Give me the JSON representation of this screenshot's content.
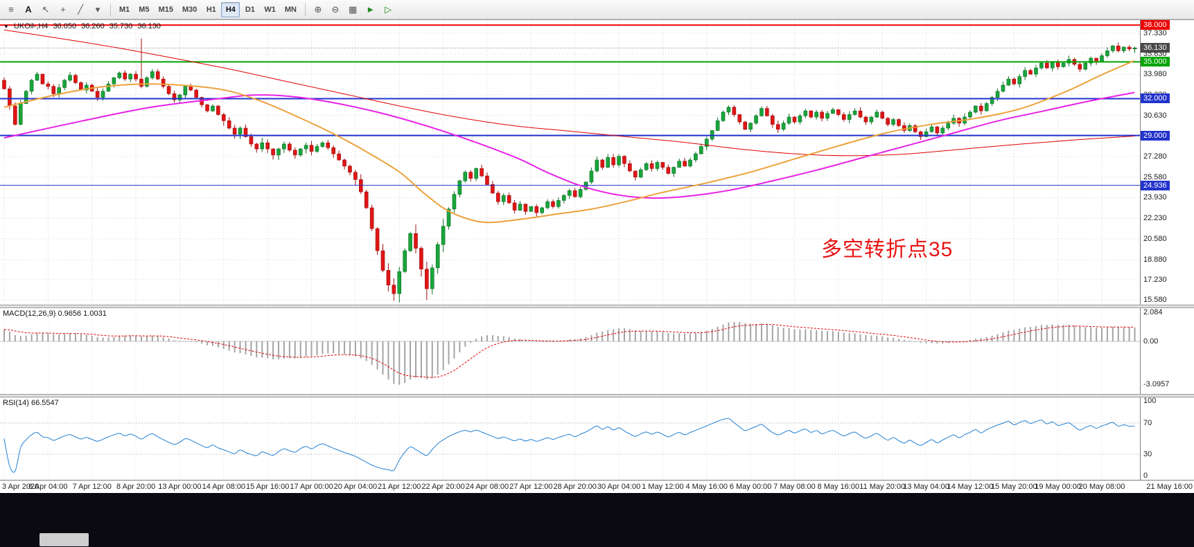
{
  "toolbar": {
    "tools": [
      {
        "name": "charts-menu-icon",
        "glyph": "≡"
      },
      {
        "name": "text-tool",
        "glyph": "A"
      },
      {
        "name": "cursor-tool-icon",
        "glyph": "↖"
      },
      {
        "name": "crosshair-tool-icon",
        "glyph": "+"
      },
      {
        "name": "draw-tool-icon",
        "glyph": "╱"
      },
      {
        "name": "draw-dropdown-icon",
        "glyph": "▾"
      }
    ],
    "timeframes": [
      "M1",
      "M5",
      "M15",
      "M30",
      "H1",
      "H4",
      "D1",
      "W1",
      "MN"
    ],
    "active_timeframe": "H4",
    "right_tools": [
      {
        "name": "zoom-in-icon",
        "glyph": "⊕",
        "color": "#555555"
      },
      {
        "name": "zoom-out-icon",
        "glyph": "⊖",
        "color": "#555555"
      },
      {
        "name": "tile-windows-icon",
        "glyph": "▦",
        "color": "#555555"
      },
      {
        "name": "auto-scroll-icon",
        "glyph": "►",
        "color": "#228b22"
      },
      {
        "name": "chart-shift-icon",
        "glyph": "▷",
        "color": "#228b22"
      }
    ]
  },
  "header": {
    "marker": "▼",
    "symbol": "UKOil-,H4",
    "open": "36.050",
    "high": "36.260",
    "low": "35.730",
    "close": "36.130"
  },
  "price_axis": {
    "ticks": [
      "37.330",
      "35.630",
      "33.980",
      "32.330",
      "30.630",
      "28.930",
      "27.280",
      "25.580",
      "23.930",
      "22.230",
      "20.580",
      "18.880",
      "17.230",
      "15.580"
    ]
  },
  "annotation": {
    "text": "多空转折点35",
    "color": "#e81313"
  },
  "macd_panel": {
    "label": "MACD(12,26,9)",
    "values": "0.9656 1.0031",
    "axis_ticks": [
      "2.084",
      "0.00",
      "-3.0957"
    ]
  },
  "rsi_panel": {
    "label": "RSI(14)",
    "value": "66.5547",
    "axis_ticks": [
      "100",
      "70",
      "30",
      "0"
    ]
  },
  "chart_data": {
    "type": "candlestick",
    "symbol": "UKOil-",
    "timeframe": "H4",
    "ohlc_current": {
      "open": 36.05,
      "high": 36.26,
      "low": 35.73,
      "close": 36.13
    },
    "y_range": [
      15.2,
      38.35
    ],
    "candles_per_label": 8,
    "x_labels": [
      "3 Apr 2020",
      "6 Apr 04:00",
      "7 Apr 12:00",
      "8 Apr 20:00",
      "13 Apr 00:00",
      "14 Apr 08:00",
      "15 Apr 16:00",
      "17 Apr 00:00",
      "20 Apr 04:00",
      "21 Apr 12:00",
      "22 Apr 20:00",
      "24 Apr 08:00",
      "27 Apr 12:00",
      "28 Apr 20:00",
      "30 Apr 04:00",
      "1 May 12:00",
      "4 May 16:00",
      "6 May 00:00",
      "7 May 08:00",
      "8 May 16:00",
      "11 May 20:00",
      "13 May 04:00",
      "14 May 12:00",
      "15 May 20:00",
      "19 May 00:00",
      "20 May 08:00",
      "21 May 16:00"
    ],
    "first_open": 33.5,
    "closes": [
      32.8,
      31.4,
      29.9,
      31.6,
      32.6,
      33.5,
      34.0,
      33.2,
      33.0,
      32.4,
      32.9,
      33.5,
      33.9,
      33.3,
      32.7,
      33.1,
      32.6,
      32.1,
      32.6,
      33.2,
      33.7,
      34.1,
      33.6,
      34.0,
      33.6,
      33.0,
      33.7,
      34.2,
      33.6,
      33.0,
      32.4,
      31.9,
      32.3,
      33.0,
      32.7,
      32.1,
      31.5,
      31.0,
      31.4,
      30.7,
      30.2,
      29.6,
      29.1,
      29.6,
      28.9,
      28.3,
      27.9,
      28.4,
      27.9,
      27.4,
      27.9,
      28.3,
      27.8,
      27.4,
      27.9,
      28.2,
      27.7,
      28.1,
      28.4,
      28.0,
      27.5,
      27.0,
      26.5,
      26.0,
      25.4,
      24.4,
      23.1,
      21.4,
      19.6,
      18.0,
      16.8,
      16.1,
      17.9,
      19.6,
      21.0,
      19.8,
      18.1,
      16.5,
      18.2,
      20.1,
      21.6,
      23.0,
      24.2,
      25.3,
      26.0,
      25.5,
      26.3,
      25.7,
      25.0,
      24.3,
      23.6,
      24.1,
      23.5,
      22.9,
      23.4,
      22.8,
      23.2,
      22.7,
      23.1,
      23.6,
      23.2,
      23.7,
      24.1,
      24.5,
      24.0,
      24.6,
      25.2,
      26.1,
      27.0,
      26.4,
      27.2,
      26.6,
      27.3,
      26.7,
      26.1,
      25.6,
      26.2,
      26.7,
      26.3,
      26.8,
      26.4,
      25.9,
      26.4,
      26.9,
      26.5,
      27.0,
      27.5,
      28.1,
      28.7,
      29.4,
      30.2,
      30.9,
      31.3,
      30.7,
      30.1,
      29.5,
      30.0,
      30.6,
      31.2,
      30.6,
      29.9,
      29.5,
      30.0,
      30.5,
      30.1,
      30.6,
      31.0,
      30.5,
      30.9,
      30.4,
      30.8,
      31.1,
      30.7,
      30.3,
      30.7,
      31.0,
      30.5,
      30.1,
      30.5,
      30.9,
      30.4,
      29.9,
      30.3,
      29.8,
      29.4,
      29.8,
      29.3,
      28.9,
      29.3,
      29.7,
      29.2,
      29.6,
      30.0,
      30.4,
      30.0,
      30.5,
      30.9,
      31.4,
      31.0,
      31.6,
      32.1,
      32.6,
      33.1,
      33.6,
      33.2,
      33.8,
      34.3,
      34.0,
      34.5,
      34.9,
      34.5,
      35.0,
      34.6,
      34.9,
      35.2,
      34.8,
      34.4,
      34.9,
      35.3,
      35.0,
      35.5,
      35.9,
      36.3,
      35.9,
      36.2,
      36.05,
      36.13
    ],
    "wick_overrides": {
      "25": {
        "high": 36.9
      },
      "77": {
        "low": 15.58
      },
      "206": {
        "high": 36.26,
        "low": 35.73
      }
    },
    "levels": [
      {
        "price": 38.0,
        "label": "38.000",
        "color": "#f00000",
        "width": 2
      },
      {
        "price": 35.0,
        "label": "35.000",
        "color": "#00a400",
        "width": 2
      },
      {
        "price": 32.0,
        "label": "32.000",
        "color": "#2233cc",
        "width": 2
      },
      {
        "price": 29.0,
        "label": "29.000",
        "color": "#2233cc",
        "width": 2
      },
      {
        "price": 24.936,
        "label": "24.936",
        "color": "#2233cc",
        "width": 1
      }
    ],
    "current_price": {
      "price": 36.13,
      "label": "36.130",
      "badge_color": "#484848"
    },
    "candle_colors": {
      "up": "#19a53b",
      "up_edge": "#0c6e24",
      "down": "#e01515",
      "down_edge": "#9c0d0d"
    },
    "moving_averages": [
      {
        "name": "ma-slow-red",
        "color": "#e00000",
        "width": 1,
        "points": [
          [
            0,
            37.6
          ],
          [
            0.05,
            36.9
          ],
          [
            0.1,
            36.15
          ],
          [
            0.15,
            35.3
          ],
          [
            0.2,
            34.4
          ],
          [
            0.25,
            33.4
          ],
          [
            0.3,
            32.4
          ],
          [
            0.35,
            31.4
          ],
          [
            0.4,
            30.5
          ],
          [
            0.45,
            29.8
          ],
          [
            0.5,
            29.35
          ],
          [
            0.55,
            28.9
          ],
          [
            0.6,
            28.45
          ],
          [
            0.65,
            27.9
          ],
          [
            0.7,
            27.5
          ],
          [
            0.75,
            27.35
          ],
          [
            0.8,
            27.5
          ],
          [
            0.85,
            27.9
          ],
          [
            0.9,
            28.3
          ],
          [
            0.95,
            28.65
          ],
          [
            1,
            28.95
          ]
        ]
      },
      {
        "name": "ma-mid-magenta",
        "color": "#e722e7",
        "width": 2,
        "points": [
          [
            0,
            28.8
          ],
          [
            0.07,
            30.2
          ],
          [
            0.13,
            31.3
          ],
          [
            0.19,
            32.0
          ],
          [
            0.225,
            32.3
          ],
          [
            0.27,
            32.0
          ],
          [
            0.33,
            30.9
          ],
          [
            0.39,
            29.3
          ],
          [
            0.45,
            27.3
          ],
          [
            0.48,
            26.0
          ],
          [
            0.51,
            24.9
          ],
          [
            0.54,
            24.2
          ],
          [
            0.57,
            23.9
          ],
          [
            0.6,
            24.0
          ],
          [
            0.64,
            24.5
          ],
          [
            0.68,
            25.3
          ],
          [
            0.72,
            26.2
          ],
          [
            0.76,
            27.2
          ],
          [
            0.8,
            28.2
          ],
          [
            0.84,
            29.2
          ],
          [
            0.88,
            30.2
          ],
          [
            0.92,
            31.0
          ],
          [
            0.96,
            31.8
          ],
          [
            1,
            32.5
          ]
        ]
      },
      {
        "name": "ma-fast-orange",
        "color": "#eba23c",
        "width": 2,
        "points": [
          [
            0,
            31.3
          ],
          [
            0.05,
            32.4
          ],
          [
            0.09,
            33.0
          ],
          [
            0.13,
            33.2
          ],
          [
            0.17,
            33.0
          ],
          [
            0.2,
            32.6
          ],
          [
            0.23,
            31.7
          ],
          [
            0.26,
            30.5
          ],
          [
            0.29,
            29.2
          ],
          [
            0.32,
            27.7
          ],
          [
            0.35,
            26.0
          ],
          [
            0.37,
            24.4
          ],
          [
            0.39,
            23.0
          ],
          [
            0.41,
            22.2
          ],
          [
            0.43,
            21.9
          ],
          [
            0.46,
            22.2
          ],
          [
            0.49,
            22.6
          ],
          [
            0.52,
            23.0
          ],
          [
            0.55,
            23.6
          ],
          [
            0.58,
            24.3
          ],
          [
            0.62,
            25.1
          ],
          [
            0.66,
            26.0
          ],
          [
            0.7,
            27.1
          ],
          [
            0.74,
            28.2
          ],
          [
            0.78,
            29.2
          ],
          [
            0.82,
            29.9
          ],
          [
            0.86,
            30.4
          ],
          [
            0.9,
            31.2
          ],
          [
            0.94,
            32.6
          ],
          [
            0.97,
            33.9
          ],
          [
            1,
            35.1
          ]
        ]
      }
    ],
    "indicators": [
      {
        "type": "MACD",
        "params": [
          12,
          26,
          9
        ],
        "current": [
          0.9656,
          1.0031
        ]
      },
      {
        "type": "RSI",
        "params": [
          14
        ],
        "current": 66.5547,
        "levels": [
          70,
          30
        ]
      }
    ]
  }
}
